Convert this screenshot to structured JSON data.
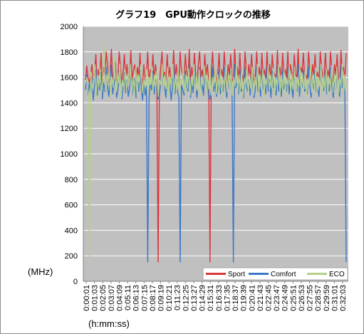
{
  "chart_data": {
    "type": "line",
    "title": "グラフ19　GPU動作クロックの推移",
    "ylabel": "(MHz)",
    "xlabel": "(h:mm:ss)",
    "ylim": [
      0,
      2000
    ],
    "yticks": [
      0,
      200,
      400,
      600,
      800,
      1000,
      1200,
      1400,
      1600,
      1800,
      2000
    ],
    "xticks": [
      "0:00:01",
      "0:01:03",
      "0:02:05",
      "0:03:07",
      "0:04:09",
      "0:05:11",
      "0:06:13",
      "0:07:15",
      "0:08:17",
      "0:09:19",
      "0:10:21",
      "0:11:23",
      "0:12:25",
      "0:13:27",
      "0:14:29",
      "0:15:31",
      "0:16:33",
      "0:17:35",
      "0:18:37",
      "0:19:39",
      "0:20:41",
      "0:21:43",
      "0:22:45",
      "0:23:47",
      "0:24:49",
      "0:25:51",
      "0:26:53",
      "0:27:55",
      "0:28:57",
      "0:29:59",
      "0:31:01",
      "0:32:03"
    ],
    "legend_position": "bottom-right",
    "grid": true,
    "series": [
      {
        "name": "Sport",
        "color": "#d9363e",
        "values": [
          1580,
          1690,
          1600,
          1560,
          1620,
          1700,
          1580,
          1640,
          1780,
          1540,
          1660,
          1600,
          1790,
          1560,
          1680,
          1620,
          1800,
          1700,
          1560,
          1640,
          1820,
          1580,
          1650,
          1720,
          1560,
          1600,
          1800,
          1680,
          1550,
          1640,
          1780,
          1600,
          1700,
          1560,
          1620,
          1810,
          1580,
          1660,
          1700,
          1560,
          1680,
          1600,
          1790,
          1620,
          1540,
          1700,
          1580,
          1640,
          1800,
          1560,
          1660,
          1620,
          1780,
          1580,
          1700,
          1620,
          150,
          1560,
          1680,
          1800,
          1600,
          1640,
          1560,
          1780,
          1600,
          1680,
          1540,
          1620,
          1810,
          1580,
          1700,
          1600,
          1560,
          1800,
          1660,
          1620,
          1580,
          1780,
          1640,
          1600,
          1820,
          1560,
          1680,
          1600,
          1790,
          1620,
          1560,
          1700,
          1800,
          1600,
          1660,
          1580,
          1780,
          1620,
          1700,
          1560,
          150,
          1640,
          1800,
          1600,
          1680,
          1560,
          1620,
          1790,
          1580,
          1660,
          1600,
          1800,
          1640,
          1560,
          1700,
          1620,
          1780,
          1600,
          1560,
          1820,
          1640,
          1680,
          1580,
          1790,
          1600,
          1620,
          1560,
          1800,
          1660,
          1600,
          1700,
          1580,
          1780,
          1640,
          1560,
          1620,
          1800,
          1600,
          1680,
          1560,
          1790,
          1620,
          1660,
          1580,
          1800,
          1600,
          1700,
          1560,
          1780,
          1640,
          1620,
          1580,
          1810,
          1600,
          1680,
          1560,
          1790,
          1620,
          1660,
          1600,
          1800,
          1580,
          1700,
          1640,
          1560,
          1780,
          1620,
          1600,
          1820,
          1560,
          1680,
          1640,
          1790,
          1600,
          1620,
          1580,
          1800,
          1660,
          1560,
          1700,
          1620,
          1780,
          1600,
          1640,
          1560,
          1800,
          1680,
          1600,
          1620,
          1790,
          1580,
          1660,
          1600,
          1800,
          1640,
          1560,
          1700,
          1620,
          1780,
          1600,
          1560,
          1810,
          1640,
          1680,
          1580,
          1790
        ]
      },
      {
        "name": "Comfort",
        "color": "#3d78c8",
        "values": [
          1500,
          1620,
          1450,
          1560,
          1480,
          1600,
          1420,
          1530,
          1660,
          1460,
          1590,
          1500,
          1640,
          1430,
          1560,
          1490,
          1680,
          1520,
          1450,
          1580,
          1700,
          1470,
          1540,
          1610,
          1440,
          1500,
          1660,
          1560,
          1430,
          1520,
          1640,
          1480,
          1580,
          1450,
          1510,
          1680,
          1460,
          1540,
          1600,
          1440,
          1560,
          1490,
          1660,
          1520,
          1420,
          1580,
          1460,
          1530,
          150,
          1440,
          1560,
          1500,
          1650,
          1470,
          1580,
          1510,
          1430,
          1450,
          1560,
          1680,
          1490,
          1530,
          1440,
          1650,
          1500,
          1560,
          1420,
          1510,
          1690,
          1470,
          1580,
          1490,
          1440,
          150,
          1540,
          1500,
          1460,
          1650,
          1520,
          1490,
          1700,
          1440,
          1560,
          1480,
          1660,
          1510,
          1440,
          1580,
          1680,
          1490,
          1540,
          1460,
          1650,
          1510,
          1580,
          1440,
          1430,
          1520,
          1680,
          1490,
          1560,
          1450,
          1510,
          1660,
          1470,
          1540,
          1490,
          1680,
          1520,
          1440,
          1580,
          1510,
          1650,
          1490,
          150,
          1700,
          1520,
          1560,
          1470,
          1660,
          1490,
          1510,
          1440,
          1680,
          1540,
          1490,
          1580,
          1460,
          1650,
          1520,
          1440,
          1510,
          1680,
          1490,
          1560,
          1450,
          1660,
          1510,
          1540,
          1470,
          1680,
          1490,
          1580,
          1440,
          1650,
          1520,
          1510,
          1460,
          1690,
          1490,
          1560,
          1450,
          1660,
          1510,
          1540,
          1490,
          1680,
          1470,
          1580,
          1520,
          1440,
          1650,
          1510,
          1490,
          1700,
          1450,
          1560,
          1520,
          1660,
          1490,
          1510,
          1470,
          1680,
          1540,
          1440,
          1580,
          1510,
          1650,
          1490,
          1520,
          1450,
          1680,
          1560,
          1490,
          1510,
          1660,
          1470,
          1540,
          1490,
          1680,
          1520,
          1440,
          1580,
          1510,
          1650,
          1490,
          1450,
          1690,
          1520,
          1560,
          1470,
          150
        ]
      },
      {
        "name": "ECO",
        "color": "#b5d08b",
        "values": [
          1550,
          1600,
          1480,
          150,
          1640,
          1500,
          1580,
          1700,
          1440,
          1620,
          1520,
          1660,
          1460,
          1580,
          1880,
          1500,
          1620,
          1540,
          1680,
          1460,
          1600,
          1520,
          1760,
          1480,
          1640,
          1560,
          1700,
          1440,
          1580,
          1520,
          1660,
          1490,
          1620,
          1540,
          1700,
          1460,
          1600,
          1500,
          1680,
          1440,
          1620,
          1560,
          1700,
          1480,
          1580,
          1520,
          1660,
          1460,
          1600,
          1540,
          1690,
          1470,
          1620,
          1500,
          1660,
          1450,
          1580,
          1540,
          1700,
          1480,
          1620,
          1510,
          1680,
          1460,
          1600,
          1530,
          1700,
          1470,
          1620,
          1500,
          1660,
          1450,
          1590,
          1540,
          1690,
          1480,
          1620,
          1510,
          1670,
          1460,
          1600,
          1530,
          1700,
          1470,
          1620,
          1500,
          1660,
          1450,
          1590,
          1540,
          1690,
          1480,
          1620,
          1510,
          1680,
          1460,
          1600,
          1530,
          1700,
          1470,
          1620,
          1500,
          1660,
          1450,
          1580,
          1540,
          1690,
          1480,
          1620,
          1510,
          1670,
          1460,
          1600,
          1530,
          1700,
          1470,
          1620,
          1500,
          1660,
          1450,
          1590,
          1540,
          1690,
          1480,
          1620,
          1510,
          1680,
          1460,
          1600,
          1530,
          1700,
          1470,
          1620,
          1500,
          1660,
          1450,
          1590,
          1540,
          1690,
          1480,
          1620,
          1510,
          1670,
          1460,
          1600,
          1530,
          1700,
          1470,
          1620,
          1500,
          1660,
          1450,
          1590,
          1540,
          1690,
          1480,
          1620,
          1510,
          1680,
          1460,
          1600,
          1530,
          1700,
          1470,
          1620,
          1500,
          1660,
          1450,
          1590,
          1540,
          1690,
          1480,
          1620,
          1510,
          1670,
          1460,
          1600,
          1530,
          1700,
          1470,
          1620,
          1500,
          1660,
          1450,
          1590,
          1540,
          1690,
          1480,
          1620,
          1510,
          1680,
          1460,
          1600,
          1530,
          1700,
          1470,
          1620,
          1500
        ]
      }
    ]
  }
}
